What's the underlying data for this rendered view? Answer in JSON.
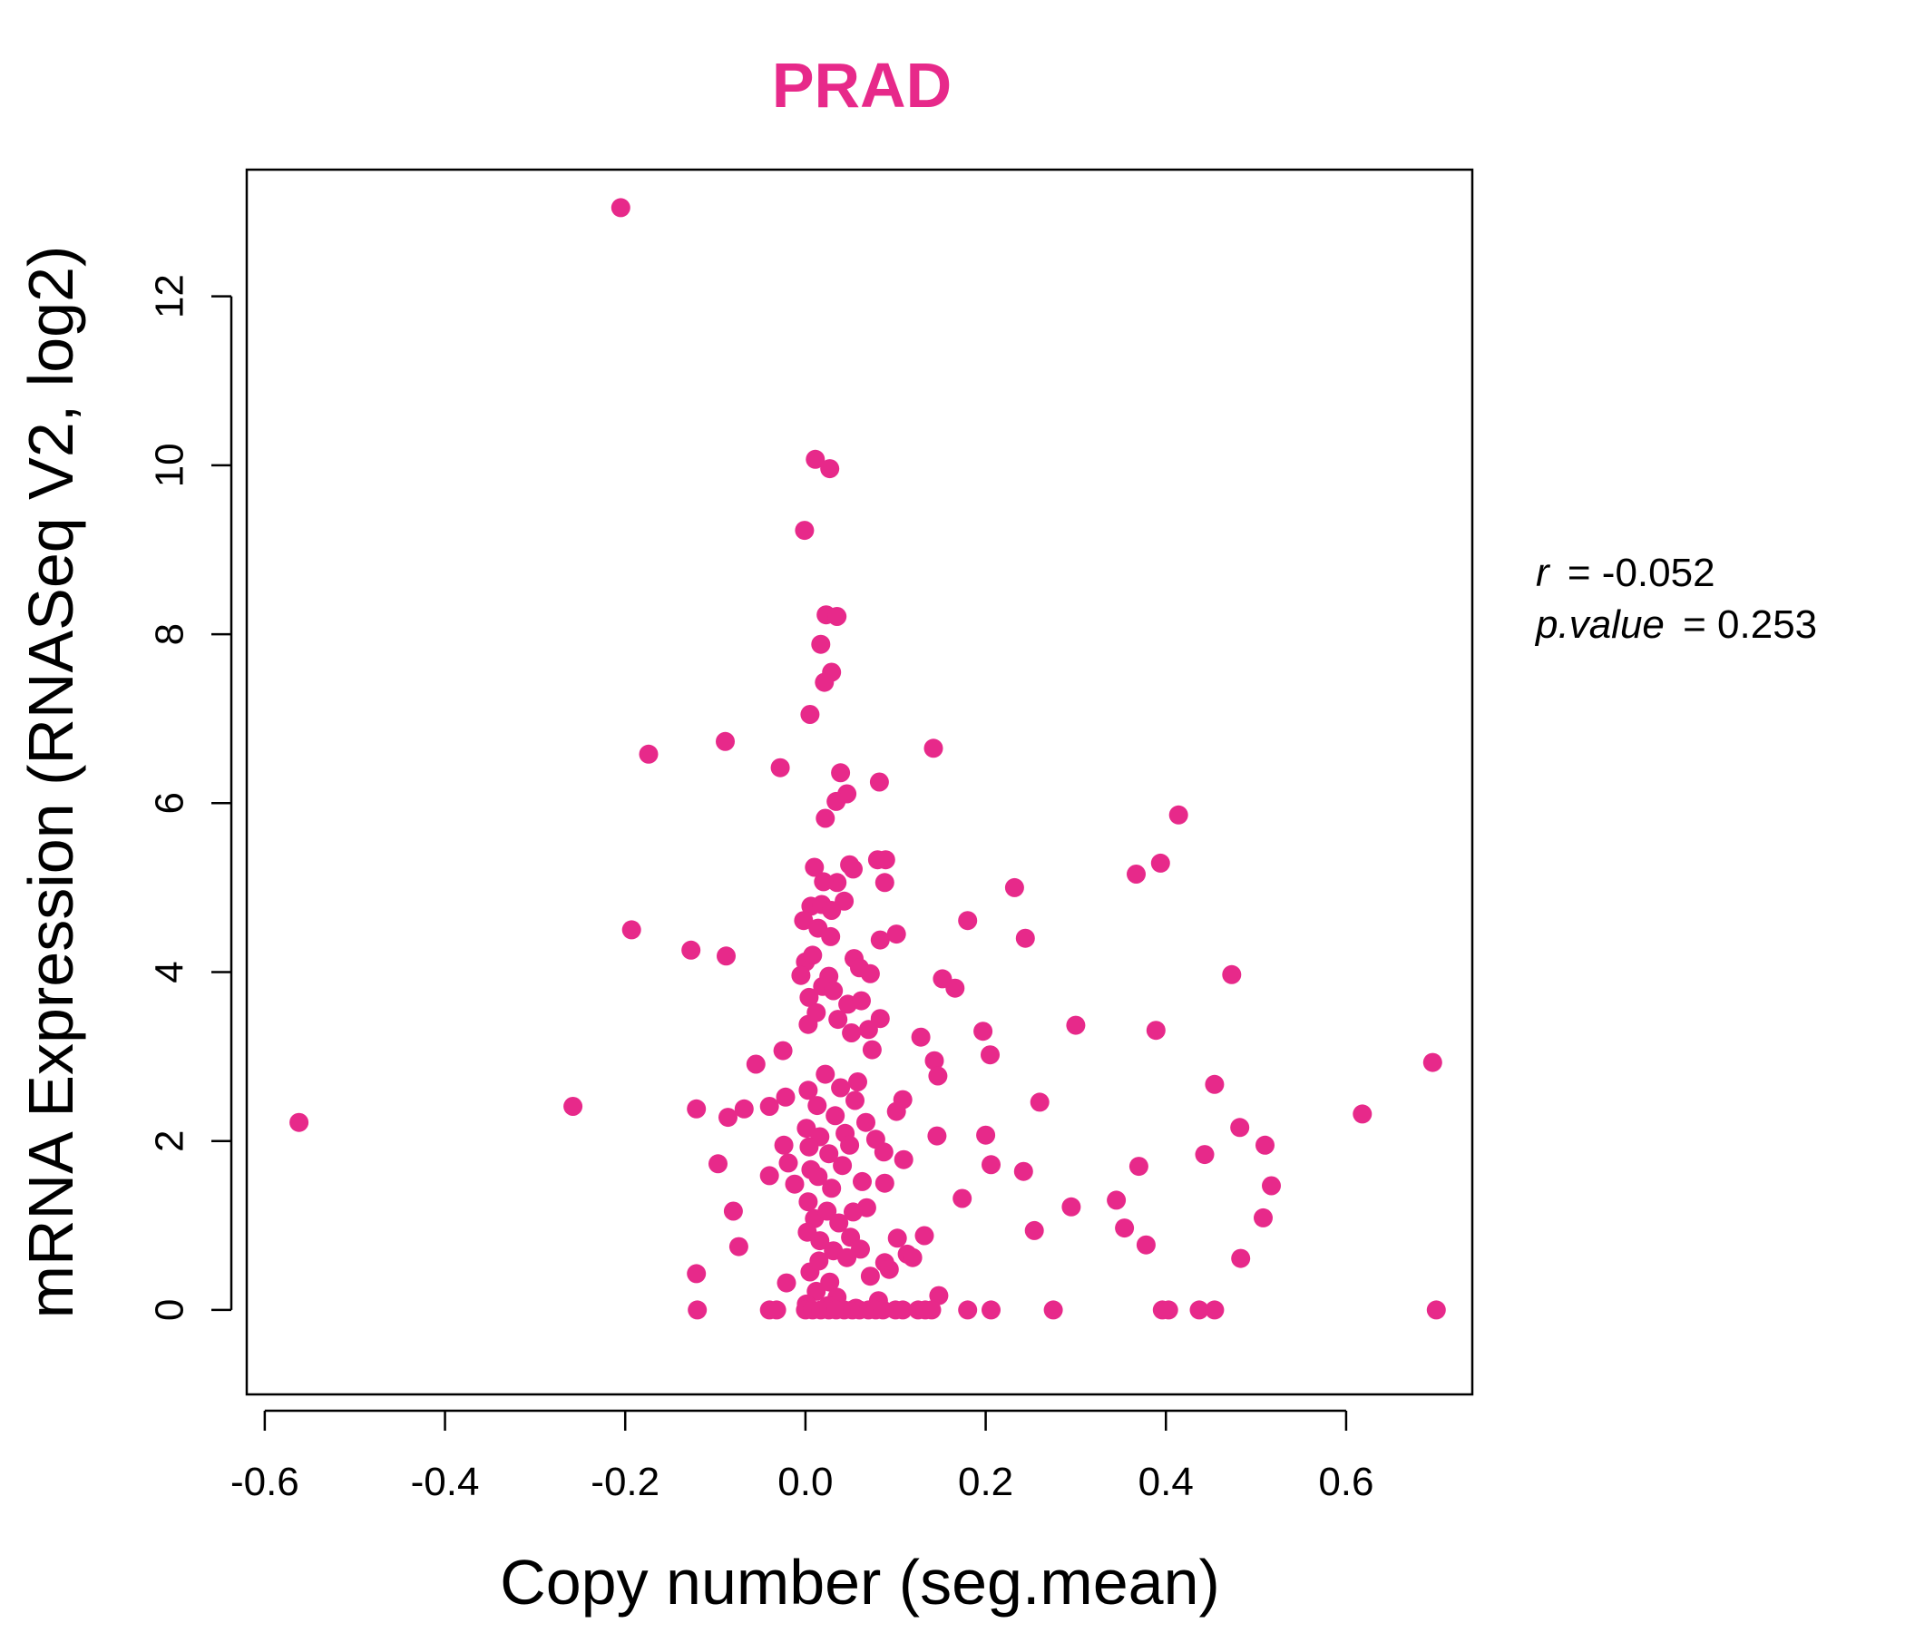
{
  "chart_data": {
    "type": "scatter",
    "title": "PRAD",
    "xlabel": "Copy number (seg.mean)",
    "ylabel": "mRNA Expression (RNASeq V2, log2)",
    "xlim": [
      -0.62,
      0.74
    ],
    "ylim": [
      -1.0,
      13.5
    ],
    "x_ticks": [
      -0.6,
      -0.4,
      -0.2,
      0.0,
      0.2,
      0.4,
      0.6
    ],
    "x_tick_labels": [
      "-0.6",
      "-0.4",
      "-0.2",
      "0.0",
      "0.2",
      "0.4",
      "0.6"
    ],
    "y_ticks": [
      0,
      2,
      4,
      6,
      8,
      10,
      12
    ],
    "y_tick_labels": [
      "0",
      "2",
      "4",
      "6",
      "8",
      "10",
      "12"
    ],
    "grid": false,
    "point_color": "#E7298A",
    "annotations": {
      "r_label": "r",
      "r_value": "= -0.052",
      "p_label": "p.value",
      "p_value": "= 0.253"
    },
    "points": [
      [
        -0.205,
        13.05
      ],
      [
        0.011,
        10.07
      ],
      [
        0.027,
        9.96
      ],
      [
        -0.001,
        9.23
      ],
      [
        0.023,
        8.23
      ],
      [
        0.035,
        8.21
      ],
      [
        0.017,
        7.88
      ],
      [
        0.029,
        7.55
      ],
      [
        0.021,
        7.43
      ],
      [
        0.005,
        7.05
      ],
      [
        -0.174,
        6.58
      ],
      [
        -0.089,
        6.73
      ],
      [
        -0.028,
        6.42
      ],
      [
        0.142,
        6.65
      ],
      [
        0.039,
        6.36
      ],
      [
        0.082,
        6.25
      ],
      [
        0.046,
        6.11
      ],
      [
        0.034,
        6.02
      ],
      [
        0.022,
        5.82
      ],
      [
        0.414,
        5.86
      ],
      [
        0.394,
        5.29
      ],
      [
        0.367,
        5.16
      ],
      [
        0.01,
        5.24
      ],
      [
        0.049,
        5.27
      ],
      [
        0.053,
        5.22
      ],
      [
        0.08,
        5.33
      ],
      [
        0.089,
        5.33
      ],
      [
        0.035,
        5.06
      ],
      [
        0.02,
        5.07
      ],
      [
        0.088,
        5.06
      ],
      [
        0.232,
        5.0
      ],
      [
        -0.193,
        4.5
      ],
      [
        -0.127,
        4.26
      ],
      [
        -0.088,
        4.19
      ],
      [
        0.006,
        4.78
      ],
      [
        0.018,
        4.8
      ],
      [
        0.043,
        4.84
      ],
      [
        0.029,
        4.73
      ],
      [
        -0.002,
        4.61
      ],
      [
        0.014,
        4.52
      ],
      [
        0.18,
        4.61
      ],
      [
        0.244,
        4.4
      ],
      [
        0.083,
        4.38
      ],
      [
        0.101,
        4.45
      ],
      [
        0.0,
        4.12
      ],
      [
        0.008,
        4.2
      ],
      [
        0.028,
        4.42
      ],
      [
        0.054,
        4.16
      ],
      [
        0.06,
        4.05
      ],
      [
        0.072,
        3.98
      ],
      [
        0.152,
        3.92
      ],
      [
        0.166,
        3.81
      ],
      [
        0.473,
        3.97
      ],
      [
        -0.005,
        3.96
      ],
      [
        0.026,
        3.95
      ],
      [
        0.004,
        3.7
      ],
      [
        0.019,
        3.83
      ],
      [
        0.031,
        3.78
      ],
      [
        0.047,
        3.62
      ],
      [
        0.062,
        3.66
      ],
      [
        0.083,
        3.45
      ],
      [
        0.07,
        3.32
      ],
      [
        0.3,
        3.37
      ],
      [
        0.197,
        3.3
      ],
      [
        0.389,
        3.31
      ],
      [
        0.128,
        3.23
      ],
      [
        0.003,
        3.38
      ],
      [
        0.012,
        3.52
      ],
      [
        0.036,
        3.44
      ],
      [
        0.051,
        3.28
      ],
      [
        0.074,
        3.08
      ],
      [
        -0.025,
        3.07
      ],
      [
        -0.055,
        2.91
      ],
      [
        0.143,
        2.95
      ],
      [
        0.205,
        3.02
      ],
      [
        0.147,
        2.77
      ],
      [
        0.454,
        2.67
      ],
      [
        0.696,
        2.93
      ],
      [
        0.26,
        2.46
      ],
      [
        0.108,
        2.49
      ],
      [
        -0.258,
        2.41
      ],
      [
        -0.121,
        2.38
      ],
      [
        -0.068,
        2.38
      ],
      [
        -0.086,
        2.28
      ],
      [
        -0.04,
        2.41
      ],
      [
        -0.022,
        2.52
      ],
      [
        0.618,
        2.32
      ],
      [
        0.101,
        2.35
      ],
      [
        0.482,
        2.16
      ],
      [
        -0.562,
        2.22
      ],
      [
        0.2,
        2.07
      ],
      [
        0.146,
        2.06
      ],
      [
        0.003,
        2.6
      ],
      [
        0.013,
        2.42
      ],
      [
        0.022,
        2.79
      ],
      [
        0.039,
        2.63
      ],
      [
        0.058,
        2.7
      ],
      [
        0.067,
        2.22
      ],
      [
        0.078,
        2.02
      ],
      [
        0.001,
        2.15
      ],
      [
        0.016,
        2.05
      ],
      [
        0.033,
        2.3
      ],
      [
        0.044,
        2.09
      ],
      [
        0.055,
        2.48
      ],
      [
        0.004,
        1.93
      ],
      [
        0.026,
        1.85
      ],
      [
        0.049,
        1.95
      ],
      [
        0.087,
        1.87
      ],
      [
        -0.024,
        1.95
      ],
      [
        -0.097,
        1.73
      ],
      [
        0.109,
        1.78
      ],
      [
        0.206,
        1.72
      ],
      [
        0.37,
        1.7
      ],
      [
        0.443,
        1.84
      ],
      [
        0.51,
        1.95
      ],
      [
        0.242,
        1.64
      ],
      [
        0.517,
        1.47
      ],
      [
        -0.04,
        1.59
      ],
      [
        -0.019,
        1.74
      ],
      [
        -0.012,
        1.49
      ],
      [
        0.006,
        1.66
      ],
      [
        0.014,
        1.58
      ],
      [
        0.029,
        1.44
      ],
      [
        0.041,
        1.71
      ],
      [
        0.063,
        1.52
      ],
      [
        0.088,
        1.5
      ],
      [
        0.174,
        1.32
      ],
      [
        0.345,
        1.3
      ],
      [
        0.295,
        1.22
      ],
      [
        -0.08,
        1.17
      ],
      [
        0.068,
        1.21
      ],
      [
        0.003,
        1.28
      ],
      [
        0.01,
        1.08
      ],
      [
        0.024,
        1.17
      ],
      [
        0.037,
        1.03
      ],
      [
        0.053,
        1.16
      ],
      [
        0.508,
        1.09
      ],
      [
        0.254,
        0.94
      ],
      [
        0.354,
        0.97
      ],
      [
        0.102,
        0.85
      ],
      [
        0.132,
        0.88
      ],
      [
        0.378,
        0.77
      ],
      [
        -0.074,
        0.75
      ],
      [
        0.002,
        0.92
      ],
      [
        0.016,
        0.82
      ],
      [
        0.031,
        0.7
      ],
      [
        0.05,
        0.86
      ],
      [
        0.061,
        0.72
      ],
      [
        0.113,
        0.66
      ],
      [
        0.119,
        0.62
      ],
      [
        0.088,
        0.56
      ],
      [
        0.093,
        0.48
      ],
      [
        0.483,
        0.61
      ],
      [
        -0.121,
        0.43
      ],
      [
        0.072,
        0.4
      ],
      [
        0.005,
        0.45
      ],
      [
        0.015,
        0.58
      ],
      [
        0.027,
        0.33
      ],
      [
        0.046,
        0.62
      ],
      [
        -0.021,
        0.32
      ],
      [
        0.148,
        0.17
      ],
      [
        0.012,
        0.22
      ],
      [
        0.035,
        0.15
      ],
      [
        0.001,
        0.07
      ],
      [
        0.025,
        0.05
      ],
      [
        0.056,
        0.02
      ],
      [
        0.081,
        0.11
      ],
      [
        -0.12,
        0.0
      ],
      [
        -0.04,
        0.0
      ],
      [
        -0.032,
        0.0
      ],
      [
        0.0,
        0.0
      ],
      [
        0.008,
        0.0
      ],
      [
        0.017,
        0.0
      ],
      [
        0.026,
        0.0
      ],
      [
        0.034,
        0.0
      ],
      [
        0.043,
        0.0
      ],
      [
        0.052,
        0.0
      ],
      [
        0.06,
        0.0
      ],
      [
        0.07,
        0.0
      ],
      [
        0.078,
        0.0
      ],
      [
        0.086,
        0.0
      ],
      [
        0.1,
        0.0
      ],
      [
        0.108,
        0.0
      ],
      [
        0.125,
        0.0
      ],
      [
        0.133,
        0.0
      ],
      [
        0.14,
        0.0
      ],
      [
        0.18,
        0.0
      ],
      [
        0.206,
        0.0
      ],
      [
        0.275,
        0.0
      ],
      [
        0.396,
        0.0
      ],
      [
        0.403,
        0.0
      ],
      [
        0.437,
        0.0
      ],
      [
        0.454,
        0.0
      ],
      [
        0.7,
        0.0
      ]
    ]
  }
}
